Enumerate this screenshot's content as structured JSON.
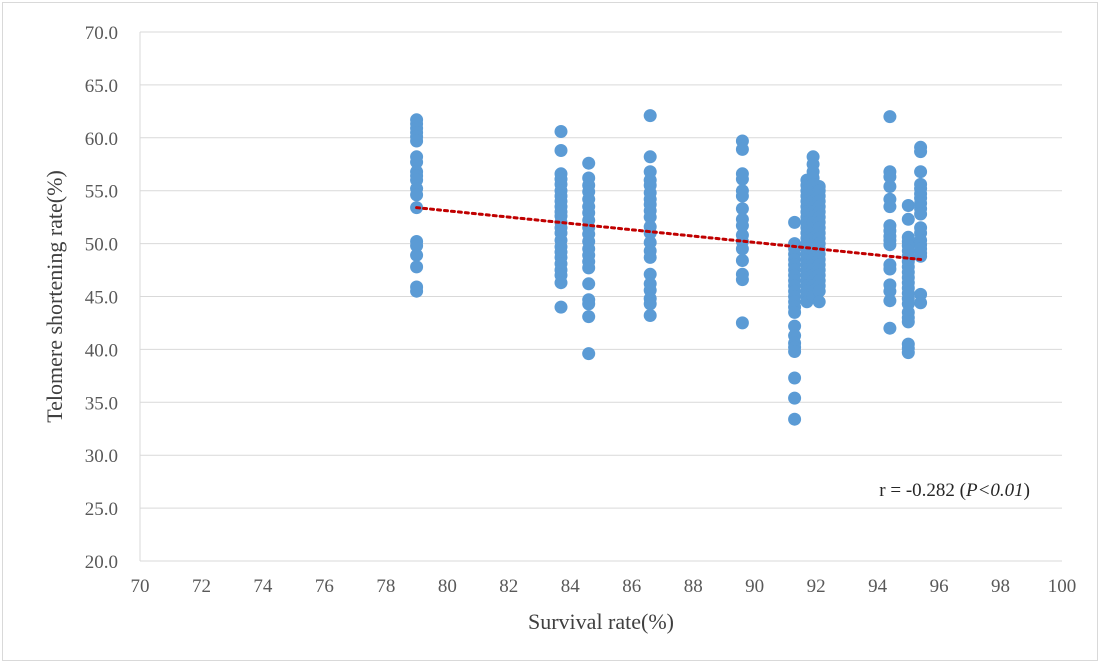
{
  "chart_data": {
    "type": "scatter",
    "title": "",
    "xlabel": "Survival rate(%)",
    "ylabel": "Telomere shortening rate(%)",
    "xlim": [
      70,
      100
    ],
    "ylim": [
      20.0,
      70.0
    ],
    "x_ticks": [
      "70",
      "72",
      "74",
      "76",
      "78",
      "80",
      "82",
      "84",
      "86",
      "88",
      "90",
      "92",
      "94",
      "96",
      "98",
      "100"
    ],
    "y_ticks": [
      "20.0",
      "25.0",
      "30.0",
      "35.0",
      "40.0",
      "45.0",
      "50.0",
      "55.0",
      "60.0",
      "65.0",
      "70.0"
    ],
    "grid": "horizontal",
    "marker_color": "#5b9bd5",
    "trendline_color": "#c00000",
    "annotation": {
      "prefix": "r = -0.282 (",
      "p_text": "P<0.01",
      "suffix": ")"
    },
    "trendline": {
      "x": [
        79.0,
        95.4
      ],
      "y": [
        53.4,
        48.5
      ]
    },
    "series": [
      {
        "x": 79.0,
        "values": [
          61.7,
          61.3,
          60.9,
          60.5,
          60.1,
          59.7,
          58.2,
          57.7,
          56.8,
          56.4,
          56.0,
          55.2,
          54.6,
          53.4,
          50.2,
          49.8,
          48.9,
          47.8,
          45.9,
          45.5
        ]
      },
      {
        "x": 83.7,
        "values": [
          60.6,
          58.8,
          56.6,
          56.1,
          55.6,
          55.0,
          54.5,
          54.0,
          53.5,
          53.0,
          52.6,
          52.0,
          51.5,
          51.0,
          50.3,
          49.7,
          49.2,
          48.7,
          48.1,
          47.5,
          47.0,
          46.3,
          44.0
        ]
      },
      {
        "x": 84.6,
        "values": [
          57.6,
          56.2,
          55.5,
          54.9,
          54.2,
          53.5,
          52.9,
          52.2,
          51.5,
          50.9,
          50.2,
          49.5,
          48.9,
          48.3,
          47.7,
          46.2,
          44.7,
          44.3,
          43.1,
          39.6
        ]
      },
      {
        "x": 86.6,
        "values": [
          62.1,
          58.2,
          56.8,
          56.0,
          55.5,
          54.8,
          54.2,
          53.7,
          53.1,
          52.5,
          51.6,
          51.0,
          50.1,
          49.3,
          48.7,
          47.1,
          46.2,
          45.6,
          44.8,
          44.3,
          43.2
        ]
      },
      {
        "x": 89.6,
        "values": [
          59.7,
          58.9,
          56.6,
          56.1,
          55.0,
          54.5,
          53.3,
          52.3,
          51.7,
          50.8,
          50.2,
          49.5,
          48.4,
          47.1,
          46.6,
          42.5
        ]
      },
      {
        "x": 91.3,
        "values": [
          52.0,
          50.0,
          49.5,
          49.0,
          48.5,
          48.0,
          47.5,
          47.0,
          46.5,
          46.0,
          45.5,
          45.0,
          44.5,
          44.0,
          43.5,
          42.2,
          41.3,
          40.6,
          40.2,
          39.8,
          37.3,
          35.4,
          33.4
        ]
      },
      {
        "x": 91.7,
        "values": [
          56.0,
          55.5,
          55.0,
          54.5,
          54.0,
          53.5,
          53.0,
          52.5,
          52.0,
          51.5,
          51.0,
          50.5,
          50.0,
          49.5,
          49.0,
          48.5,
          48.0,
          47.5,
          47.0,
          46.5,
          46.0,
          45.5,
          45.0,
          44.5
        ]
      },
      {
        "x": 91.9,
        "values": [
          58.2,
          57.5,
          56.8,
          56.2,
          55.6,
          55.0,
          54.5,
          54.0,
          53.5,
          53.0,
          52.5,
          52.0,
          51.5,
          51.0,
          50.5,
          50.0,
          49.5,
          49.0,
          48.5,
          48.0,
          47.5,
          47.0,
          46.5,
          46.0,
          45.5,
          45.0
        ]
      },
      {
        "x": 92.1,
        "values": [
          55.4,
          55.0,
          54.5,
          54.0,
          53.5,
          53.0,
          52.5,
          52.0,
          51.5,
          51.0,
          50.5,
          50.0,
          49.5,
          49.0,
          48.5,
          48.0,
          47.5,
          47.0,
          46.5,
          46.0,
          45.5,
          44.5
        ]
      },
      {
        "x": 94.4,
        "values": [
          62.0,
          56.8,
          56.3,
          55.4,
          54.2,
          53.5,
          51.7,
          51.2,
          50.7,
          50.3,
          49.9,
          48.0,
          47.6,
          46.1,
          45.5,
          44.6,
          42.0
        ]
      },
      {
        "x": 95.0,
        "values": [
          53.6,
          52.3,
          50.6,
          50.2,
          49.8,
          49.3,
          48.8,
          48.3,
          47.8,
          47.3,
          46.8,
          46.3,
          45.8,
          45.3,
          44.8,
          44.3,
          43.5,
          43.0,
          42.6,
          40.5,
          40.1,
          39.7
        ]
      },
      {
        "x": 95.4,
        "values": [
          59.1,
          58.7,
          56.8,
          55.6,
          55.2,
          54.7,
          54.3,
          53.8,
          53.3,
          52.8,
          51.5,
          51.0,
          50.3,
          49.9,
          49.5,
          49.1,
          48.8,
          45.2,
          44.4
        ]
      }
    ]
  }
}
